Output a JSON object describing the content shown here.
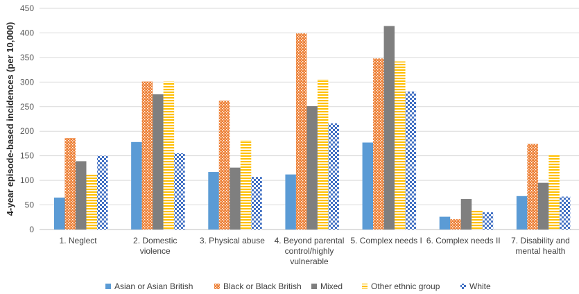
{
  "chart_data": {
    "type": "bar",
    "title": "",
    "xlabel": "",
    "ylabel": "4-year episode-based incidences (per 10,000)",
    "ylim": [
      0,
      450
    ],
    "yticks": [
      0,
      50,
      100,
      150,
      200,
      250,
      300,
      350,
      400,
      450
    ],
    "grid": true,
    "legend_position": "bottom",
    "categories": [
      [
        "1. Neglect"
      ],
      [
        "2. Domestic",
        "violence"
      ],
      [
        "3. Physical abuse"
      ],
      [
        "4. Beyond parental",
        "control/highly",
        "vulnerable"
      ],
      [
        "5. Complex needs I"
      ],
      [
        "6. Complex needs II"
      ],
      [
        "7. Disability and",
        "mental health"
      ]
    ],
    "series": [
      {
        "name": "Asian or Asian British",
        "color": "#5B9BD5",
        "pattern": "solid",
        "values": [
          65,
          178,
          117,
          112,
          177,
          26,
          68
        ]
      },
      {
        "name": "Black or Black British",
        "color": "#ED7D31",
        "pattern": "dots",
        "values": [
          186,
          301,
          262,
          399,
          348,
          21,
          174
        ]
      },
      {
        "name": "Mixed",
        "color": "#7F7F7F",
        "pattern": "solid",
        "values": [
          139,
          275,
          126,
          251,
          414,
          62,
          95
        ]
      },
      {
        "name": "Other ethnic group",
        "color": "#FFC000",
        "pattern": "horizontal-stripes",
        "values": [
          112,
          301,
          182,
          306,
          342,
          40,
          152
        ]
      },
      {
        "name": "White",
        "color": "#4472C4",
        "pattern": "checker",
        "values": [
          150,
          155,
          107,
          216,
          281,
          35,
          67
        ]
      }
    ]
  }
}
